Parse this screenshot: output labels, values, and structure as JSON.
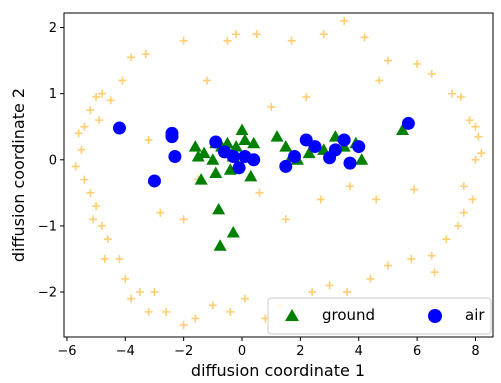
{
  "chart_data": {
    "type": "scatter",
    "xlabel": "diffusion coordinate 1",
    "ylabel": "diffusion coordinate 2",
    "xlim": [
      -6.1,
      8.6
    ],
    "ylim": [
      -2.68,
      2.22
    ],
    "xticks": [
      -6,
      -4,
      -2,
      0,
      2,
      4,
      6,
      8
    ],
    "yticks": [
      -2,
      -1,
      0,
      1,
      2
    ],
    "xtick_labels": [
      "−6",
      "−4",
      "−2",
      "0",
      "2",
      "4",
      "6",
      "8"
    ],
    "ytick_labels": [
      "−2",
      "−1",
      "0",
      "1",
      "2"
    ],
    "legend_position": "lower-right",
    "series": [
      {
        "name": "",
        "marker": "plus",
        "color": "#FFA500",
        "points": [
          [
            3.5,
            2.1
          ],
          [
            1.7,
            1.8
          ],
          [
            2.8,
            1.9
          ],
          [
            -0.2,
            1.9
          ],
          [
            -0.5,
            1.8
          ],
          [
            0.5,
            1.9
          ],
          [
            -2.0,
            1.8
          ],
          [
            4.2,
            1.85
          ],
          [
            -3.3,
            1.6
          ],
          [
            -3.8,
            1.55
          ],
          [
            -4.1,
            1.2
          ],
          [
            -4.5,
            0.9
          ],
          [
            -4.8,
            1.0
          ],
          [
            -5.0,
            0.95
          ],
          [
            -5.2,
            0.75
          ],
          [
            -5.4,
            0.5
          ],
          [
            -5.6,
            0.4
          ],
          [
            -5.5,
            0.15
          ],
          [
            -5.7,
            -0.1
          ],
          [
            -5.4,
            -0.3
          ],
          [
            -5.2,
            -0.5
          ],
          [
            -5.0,
            -0.7
          ],
          [
            -5.1,
            -0.9
          ],
          [
            -4.8,
            -1.0
          ],
          [
            -4.6,
            -1.2
          ],
          [
            -4.7,
            -1.5
          ],
          [
            -4.2,
            -1.5
          ],
          [
            -4.0,
            -1.8
          ],
          [
            -3.8,
            -2.1
          ],
          [
            -3.5,
            -2.0
          ],
          [
            -3.2,
            -2.3
          ],
          [
            -3.0,
            -2.0
          ],
          [
            -2.6,
            -2.3
          ],
          [
            -2.0,
            -2.5
          ],
          [
            -1.6,
            -2.4
          ],
          [
            -1.0,
            -2.2
          ],
          [
            -0.4,
            -2.3
          ],
          [
            0.1,
            -2.1
          ],
          [
            0.8,
            -2.4
          ],
          [
            1.3,
            -2.2
          ],
          [
            1.8,
            -2.3
          ],
          [
            2.4,
            -2.0
          ],
          [
            3.0,
            -1.9
          ],
          [
            3.6,
            -2.0
          ],
          [
            4.4,
            -1.8
          ],
          [
            5.0,
            -1.6
          ],
          [
            5.8,
            -1.5
          ],
          [
            6.5,
            -1.45
          ],
          [
            7.0,
            -1.2
          ],
          [
            7.4,
            -1.0
          ],
          [
            7.6,
            -0.8
          ],
          [
            7.9,
            -0.6
          ],
          [
            7.6,
            -0.4
          ],
          [
            8.0,
            0.0
          ],
          [
            8.2,
            0.1
          ],
          [
            8.1,
            0.35
          ],
          [
            8.0,
            0.5
          ],
          [
            7.8,
            0.6
          ],
          [
            7.5,
            0.95
          ],
          [
            7.2,
            1.0
          ],
          [
            6.5,
            1.3
          ],
          [
            6.0,
            1.45
          ],
          [
            5.0,
            1.5
          ],
          [
            4.7,
            1.2
          ],
          [
            -4.9,
            0.6
          ],
          [
            -3.2,
            0.3
          ],
          [
            -3.1,
            -0.35
          ],
          [
            -2.8,
            -0.8
          ],
          [
            -2.0,
            -0.9
          ],
          [
            -1.5,
            -0.3
          ],
          [
            0.6,
            -0.5
          ],
          [
            1.5,
            -0.9
          ],
          [
            2.7,
            -0.6
          ],
          [
            3.7,
            -0.4
          ],
          [
            4.6,
            -0.6
          ],
          [
            5.9,
            -0.45
          ],
          [
            6.6,
            -1.7
          ],
          [
            -1.2,
            1.2
          ],
          [
            1.0,
            0.8
          ],
          [
            2.2,
            0.95
          ]
        ]
      },
      {
        "name": "ground",
        "marker": "triangle",
        "color": "#008000",
        "points": [
          [
            -1.6,
            0.2
          ],
          [
            -1.5,
            0.05
          ],
          [
            -1.3,
            0.1
          ],
          [
            -1.0,
            0.0
          ],
          [
            -0.9,
            0.25
          ],
          [
            -0.7,
            0.2
          ],
          [
            -0.5,
            0.25
          ],
          [
            -0.3,
            0.05
          ],
          [
            -0.2,
            0.2
          ],
          [
            0.1,
            0.3
          ],
          [
            0.0,
            0.45
          ],
          [
            0.4,
            0.25
          ],
          [
            1.2,
            0.35
          ],
          [
            1.5,
            0.2
          ],
          [
            1.7,
            0.05
          ],
          [
            1.9,
            0.0
          ],
          [
            2.3,
            0.1
          ],
          [
            2.8,
            0.15
          ],
          [
            3.2,
            0.35
          ],
          [
            3.5,
            0.2
          ],
          [
            3.9,
            0.25
          ],
          [
            4.1,
            0.0
          ],
          [
            5.5,
            0.45
          ],
          [
            -1.4,
            -0.3
          ],
          [
            -0.9,
            -0.2
          ],
          [
            0.3,
            -0.25
          ],
          [
            -0.4,
            -0.15
          ],
          [
            -0.8,
            -0.75
          ],
          [
            -0.3,
            -1.1
          ],
          [
            -0.75,
            -1.3
          ]
        ]
      },
      {
        "name": "air",
        "marker": "circle",
        "color": "#0000FF",
        "points": [
          [
            -4.2,
            0.48
          ],
          [
            -3.0,
            -0.32
          ],
          [
            -2.4,
            0.4
          ],
          [
            -2.4,
            0.35
          ],
          [
            -2.3,
            0.05
          ],
          [
            -0.9,
            0.27
          ],
          [
            -0.6,
            0.12
          ],
          [
            -0.3,
            0.05
          ],
          [
            -0.1,
            -0.12
          ],
          [
            0.1,
            0.05
          ],
          [
            0.4,
            0.0
          ],
          [
            1.5,
            -0.1
          ],
          [
            1.8,
            0.05
          ],
          [
            2.2,
            0.3
          ],
          [
            2.5,
            0.2
          ],
          [
            3.0,
            0.03
          ],
          [
            3.2,
            0.15
          ],
          [
            3.5,
            0.3
          ],
          [
            3.7,
            -0.05
          ],
          [
            4.0,
            0.2
          ],
          [
            5.7,
            0.55
          ]
        ]
      }
    ]
  }
}
